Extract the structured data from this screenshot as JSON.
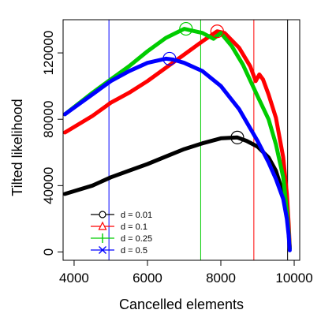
{
  "chart_data": {
    "type": "line",
    "xlabel": "Cancelled elements",
    "ylabel": "Tilted likelihood",
    "xlim": [
      3700,
      10150
    ],
    "ylim": [
      -5000,
      140000
    ],
    "x_ticks": [
      4000,
      6000,
      8000,
      10000
    ],
    "y_ticks": [
      0,
      40000,
      80000,
      120000
    ],
    "x_tick_labels": [
      "4000",
      "6000",
      "8000",
      "10000"
    ],
    "y_tick_labels": [
      "0",
      "40000",
      "80000",
      "120000"
    ],
    "legend_position": "bottom-left",
    "series": [
      {
        "name": "d = 0.01",
        "color": "#000000",
        "marker": "circle",
        "points": [
          [
            3750,
            35000
          ],
          [
            4500,
            40000
          ],
          [
            5000,
            45000
          ],
          [
            5500,
            49000
          ],
          [
            6000,
            53000
          ],
          [
            6500,
            57500
          ],
          [
            7000,
            62000
          ],
          [
            7500,
            65500
          ],
          [
            8000,
            68500
          ],
          [
            8450,
            69000
          ],
          [
            8700,
            67000
          ],
          [
            9000,
            63500
          ],
          [
            9300,
            57000
          ],
          [
            9500,
            49000
          ],
          [
            9700,
            35000
          ],
          [
            9800,
            25000
          ],
          [
            9850,
            12000
          ],
          [
            9880,
            2000
          ]
        ],
        "optimum": {
          "x": 8450,
          "y": 69000
        },
        "vline": 9820
      },
      {
        "name": "d = 0.1",
        "color": "#ff0000",
        "marker": "triangle",
        "points": [
          [
            3750,
            72000
          ],
          [
            4500,
            82000
          ],
          [
            5000,
            90000
          ],
          [
            5500,
            96000
          ],
          [
            6000,
            103000
          ],
          [
            6500,
            111000
          ],
          [
            7000,
            119000
          ],
          [
            7500,
            127000
          ],
          [
            7900,
            133000
          ],
          [
            8100,
            132000
          ],
          [
            8500,
            123000
          ],
          [
            8800,
            112000
          ],
          [
            8950,
            103000
          ],
          [
            9050,
            107000
          ],
          [
            9150,
            104000
          ],
          [
            9300,
            95000
          ],
          [
            9500,
            81000
          ],
          [
            9700,
            57000
          ],
          [
            9800,
            35000
          ],
          [
            9850,
            17000
          ],
          [
            9880,
            3000
          ]
        ],
        "optimum": {
          "x": 7900,
          "y": 133000
        },
        "vline": 8900
      },
      {
        "name": "d = 0.25",
        "color": "#00cc00",
        "marker": "plus",
        "points": [
          [
            3750,
            83000
          ],
          [
            4500,
            96000
          ],
          [
            5000,
            104000
          ],
          [
            5500,
            112000
          ],
          [
            6000,
            121000
          ],
          [
            6500,
            129000
          ],
          [
            7000,
            134500
          ],
          [
            7200,
            133500
          ],
          [
            7500,
            132000
          ],
          [
            7800,
            128500
          ],
          [
            8000,
            132000
          ],
          [
            8300,
            124000
          ],
          [
            8600,
            113000
          ],
          [
            9000,
            94000
          ],
          [
            9300,
            80000
          ],
          [
            9500,
            65000
          ],
          [
            9700,
            45000
          ],
          [
            9800,
            25000
          ],
          [
            9850,
            12000
          ],
          [
            9880,
            2000
          ]
        ],
        "optimum": {
          "x": 7050,
          "y": 134500
        },
        "vline": 7450
      },
      {
        "name": "d = 0.5",
        "color": "#0000ff",
        "marker": "cross",
        "points": [
          [
            3750,
            83000
          ],
          [
            4500,
            95000
          ],
          [
            5000,
            103000
          ],
          [
            5500,
            109000
          ],
          [
            6000,
            114000
          ],
          [
            6500,
            116500
          ],
          [
            6700,
            116000
          ],
          [
            7000,
            114000
          ],
          [
            7500,
            109000
          ],
          [
            8000,
            100000
          ],
          [
            8500,
            86000
          ],
          [
            9000,
            67000
          ],
          [
            9300,
            54000
          ],
          [
            9500,
            44000
          ],
          [
            9700,
            32000
          ],
          [
            9800,
            20000
          ],
          [
            9850,
            10000
          ],
          [
            9880,
            1000
          ]
        ],
        "optimum": {
          "x": 6600,
          "y": 116500
        },
        "vline": 4950
      }
    ]
  }
}
